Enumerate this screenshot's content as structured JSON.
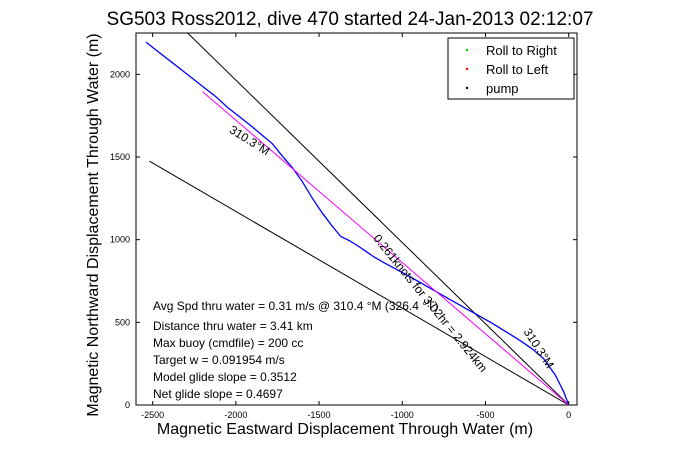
{
  "chart_data": {
    "type": "line",
    "title": "SG503 Ross2012, dive 470 started 24-Jan-2013 02:12:07",
    "xlabel": "Magnetic Eastward Displacement Through Water (m)",
    "ylabel": "Magnetic Northward Displacement Through Water (m)",
    "xlim": [
      -2600,
      50
    ],
    "ylim": [
      0,
      2250
    ],
    "xticks": [
      -2500,
      -2000,
      -1500,
      -1000,
      -500,
      0
    ],
    "yticks": [
      0,
      500,
      1000,
      1500,
      2000
    ],
    "grid": false,
    "legend": {
      "placement": "top-right",
      "entries": [
        {
          "label": "Roll to Right",
          "color": "#00cc00"
        },
        {
          "label": "Roll to Left",
          "color": "#ff0000"
        },
        {
          "label": "pump",
          "color": "#000000"
        }
      ]
    },
    "series": [
      {
        "name": "track",
        "color": "#0000ff",
        "x": [
          -2540,
          -2470,
          -2400,
          -2330,
          -2260,
          -2190,
          -2120,
          -2050,
          -1980,
          -1910,
          -1840,
          -1780,
          -1720,
          -1660,
          -1600,
          -1540,
          -1480,
          -1420,
          -1370,
          -1320,
          -1270,
          -1220,
          -1170,
          -1100,
          -1020,
          -940,
          -860,
          -780,
          -700,
          -620,
          -540,
          -460,
          -380,
          -300,
          -220,
          -150,
          -80,
          -30,
          0
        ],
        "y": [
          2195,
          2140,
          2085,
          2030,
          1975,
          1920,
          1865,
          1800,
          1745,
          1690,
          1630,
          1580,
          1505,
          1435,
          1350,
          1250,
          1160,
          1080,
          1020,
          995,
          965,
          930,
          895,
          855,
          812,
          768,
          722,
          676,
          630,
          585,
          540,
          495,
          445,
          395,
          340,
          280,
          180,
          80,
          0
        ]
      },
      {
        "name": "heading line",
        "color": "#ff00ff",
        "x": [
          -2200,
          0
        ],
        "y": [
          1895,
          0
        ]
      }
    ],
    "reference_lines": [
      {
        "x": [
          -2600,
          0
        ],
        "y": [
          2555,
          0
        ],
        "color": "#000000"
      },
      {
        "x": [
          -2520,
          0
        ],
        "y": [
          1475,
          0
        ],
        "color": "#000000"
      }
    ],
    "annotations": [
      {
        "text": "310.3°M",
        "x": -1930,
        "y": 1580,
        "angle": 32
      },
      {
        "text": "0.261knots for 3.02hr = 2.924km",
        "x": -850,
        "y": 600,
        "angle": 51
      },
      {
        "text": "310.3°M",
        "x": -200,
        "y": 330,
        "angle": 57
      }
    ],
    "stats": {
      "avg_speed": "Avg Spd thru water =  0.31 m/s @ 310.4 °M (326.4 °T)",
      "distance": "Distance thru water =  3.41 km",
      "max_buoy": "Max buoy (cmdfile) = 200 cc",
      "target_w": "Target w = 0.091954 m/s",
      "model_glide": "Model glide slope = 0.3512",
      "net_glide": "Net glide slope = 0.4697"
    }
  }
}
